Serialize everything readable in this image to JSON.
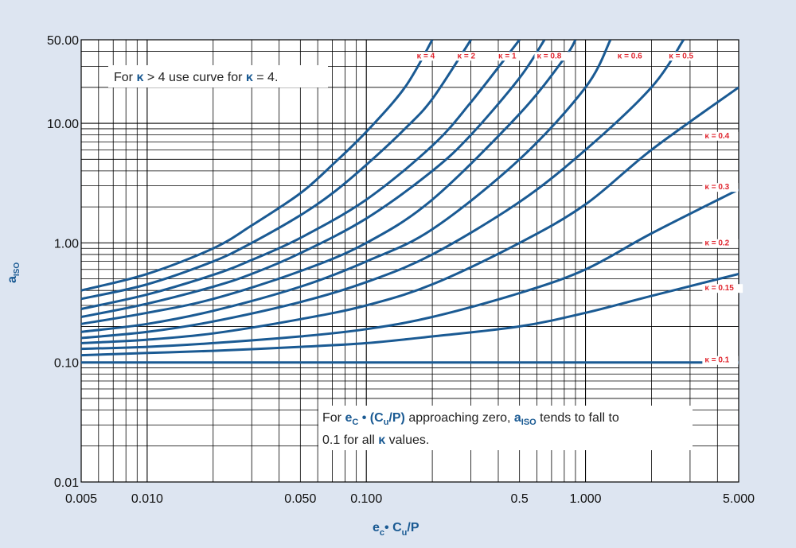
{
  "colors": {
    "page_bg": "#dde5f1",
    "plot_bg": "#ffffff",
    "grid": "#000000",
    "curve": "#1a5a93",
    "kappa_label": "#e0262f",
    "axis_title": "#1a5a93"
  },
  "annotations": {
    "top_note": {
      "pre": "For ",
      "kappa1": "κ",
      "mid": " > 4 use curve for ",
      "kappa2": "κ",
      "post": " = 4."
    },
    "bottom_note": {
      "line1_pre": "For ",
      "e": "e",
      "e_sub": "C",
      "cu_open": " • (C",
      "cu_sub": "u",
      "cu_close": "/P)",
      "line1_mid": " approaching zero, ",
      "a": "a",
      "a_sub": "ISO",
      "line1_post": " tends to fall to",
      "line2_pre": "0.1 for all ",
      "line2_kappa": "κ",
      "line2_post": " values."
    }
  },
  "chart_data": {
    "type": "line",
    "x_scale": "log",
    "y_scale": "log",
    "xlim": [
      0.005,
      5
    ],
    "ylim": [
      0.01,
      50
    ],
    "grid": true,
    "xlabel": {
      "main": "e",
      "sub1": "c",
      "mid": "• C",
      "sub2": "u",
      "tail": "/P"
    },
    "ylabel": {
      "main": "a",
      "sub": "ISO"
    },
    "x_tick_labels": [
      {
        "x": 0.005,
        "label": "0.005"
      },
      {
        "x": 0.01,
        "label": "0.010"
      },
      {
        "x": 0.05,
        "label": "0.050"
      },
      {
        "x": 0.1,
        "label": "0.100"
      },
      {
        "x": 0.5,
        "label": "0.5"
      },
      {
        "x": 1,
        "label": "1.000"
      },
      {
        "x": 5,
        "label": "5.000"
      }
    ],
    "y_tick_labels": [
      {
        "y": 50,
        "label": "50.00"
      },
      {
        "y": 10,
        "label": "10.00"
      },
      {
        "y": 1,
        "label": "1.00"
      },
      {
        "y": 0.1,
        "label": "0.10"
      },
      {
        "y": 0.01,
        "label": "0.01"
      }
    ],
    "series": [
      {
        "name": "κ = 4",
        "label_at": [
          0.17,
          35
        ],
        "points": [
          [
            0.005,
            0.4
          ],
          [
            0.01,
            0.55
          ],
          [
            0.02,
            0.9
          ],
          [
            0.03,
            1.4
          ],
          [
            0.05,
            2.6
          ],
          [
            0.07,
            4.5
          ],
          [
            0.1,
            8.5
          ],
          [
            0.15,
            20
          ],
          [
            0.2,
            50
          ]
        ]
      },
      {
        "name": "κ = 2",
        "label_at": [
          0.26,
          35
        ],
        "points": [
          [
            0.005,
            0.34
          ],
          [
            0.01,
            0.45
          ],
          [
            0.02,
            0.7
          ],
          [
            0.03,
            1.0
          ],
          [
            0.05,
            1.7
          ],
          [
            0.07,
            2.6
          ],
          [
            0.1,
            4.5
          ],
          [
            0.15,
            9
          ],
          [
            0.2,
            16
          ],
          [
            0.3,
            50
          ]
        ]
      },
      {
        "name": "κ = 1",
        "label_at": [
          0.4,
          35
        ],
        "points": [
          [
            0.005,
            0.28
          ],
          [
            0.01,
            0.37
          ],
          [
            0.02,
            0.54
          ],
          [
            0.03,
            0.72
          ],
          [
            0.05,
            1.1
          ],
          [
            0.1,
            2.3
          ],
          [
            0.2,
            6.5
          ],
          [
            0.3,
            15
          ],
          [
            0.5,
            50
          ]
        ]
      },
      {
        "name": "κ = 0.8",
        "label_at": [
          0.6,
          35
        ],
        "points": [
          [
            0.005,
            0.24
          ],
          [
            0.01,
            0.31
          ],
          [
            0.02,
            0.43
          ],
          [
            0.03,
            0.55
          ],
          [
            0.05,
            0.82
          ],
          [
            0.1,
            1.6
          ],
          [
            0.2,
            4
          ],
          [
            0.3,
            8
          ],
          [
            0.5,
            24
          ],
          [
            0.65,
            50
          ]
        ]
      },
      {
        "name": "κ = 0.6",
        "label_at": [
          1.4,
          35
        ],
        "points": [
          [
            0.005,
            0.21
          ],
          [
            0.01,
            0.26
          ],
          [
            0.02,
            0.34
          ],
          [
            0.05,
            0.58
          ],
          [
            0.1,
            1.0
          ],
          [
            0.2,
            2.3
          ],
          [
            0.5,
            12
          ],
          [
            0.8,
            35
          ],
          [
            0.9,
            50
          ]
        ]
      },
      {
        "name": "κ = 0.5",
        "label_at": [
          2.4,
          35
        ],
        "points": [
          [
            0.005,
            0.18
          ],
          [
            0.01,
            0.21
          ],
          [
            0.02,
            0.27
          ],
          [
            0.05,
            0.43
          ],
          [
            0.1,
            0.7
          ],
          [
            0.2,
            1.3
          ],
          [
            0.5,
            5
          ],
          [
            1,
            20
          ],
          [
            1.3,
            50
          ]
        ]
      },
      {
        "name": "κ = 0.4",
        "label_at": [
          3.5,
          7.5
        ],
        "points": [
          [
            0.005,
            0.16
          ],
          [
            0.01,
            0.18
          ],
          [
            0.02,
            0.22
          ],
          [
            0.05,
            0.32
          ],
          [
            0.1,
            0.47
          ],
          [
            0.2,
            0.8
          ],
          [
            0.5,
            2.2
          ],
          [
            1,
            6
          ],
          [
            2,
            20
          ],
          [
            2.8,
            50
          ]
        ]
      },
      {
        "name": "κ = 0.3",
        "label_at": [
          3.5,
          2.8
        ],
        "points": [
          [
            0.005,
            0.145
          ],
          [
            0.01,
            0.155
          ],
          [
            0.02,
            0.175
          ],
          [
            0.05,
            0.23
          ],
          [
            0.1,
            0.3
          ],
          [
            0.2,
            0.45
          ],
          [
            0.5,
            1.0
          ],
          [
            1,
            2.1
          ],
          [
            2,
            6
          ],
          [
            5,
            20
          ]
        ]
      },
      {
        "name": "κ = 0.2",
        "label_at": [
          3.5,
          0.95
        ],
        "points": [
          [
            0.005,
            0.13
          ],
          [
            0.01,
            0.135
          ],
          [
            0.02,
            0.145
          ],
          [
            0.05,
            0.165
          ],
          [
            0.1,
            0.19
          ],
          [
            0.2,
            0.24
          ],
          [
            0.5,
            0.38
          ],
          [
            1,
            0.6
          ],
          [
            2,
            1.2
          ],
          [
            5,
            2.8
          ]
        ]
      },
      {
        "name": "κ = 0.15",
        "label_at": [
          3.5,
          0.4
        ],
        "points": [
          [
            0.005,
            0.115
          ],
          [
            0.01,
            0.12
          ],
          [
            0.02,
            0.125
          ],
          [
            0.05,
            0.135
          ],
          [
            0.1,
            0.145
          ],
          [
            0.2,
            0.165
          ],
          [
            0.5,
            0.2
          ],
          [
            1,
            0.26
          ],
          [
            2,
            0.36
          ],
          [
            5,
            0.55
          ]
        ]
      },
      {
        "name": "κ = 0.1",
        "label_at": [
          3.5,
          0.1
        ],
        "points": [
          [
            0.005,
            0.1
          ],
          [
            5,
            0.1
          ]
        ]
      }
    ]
  }
}
